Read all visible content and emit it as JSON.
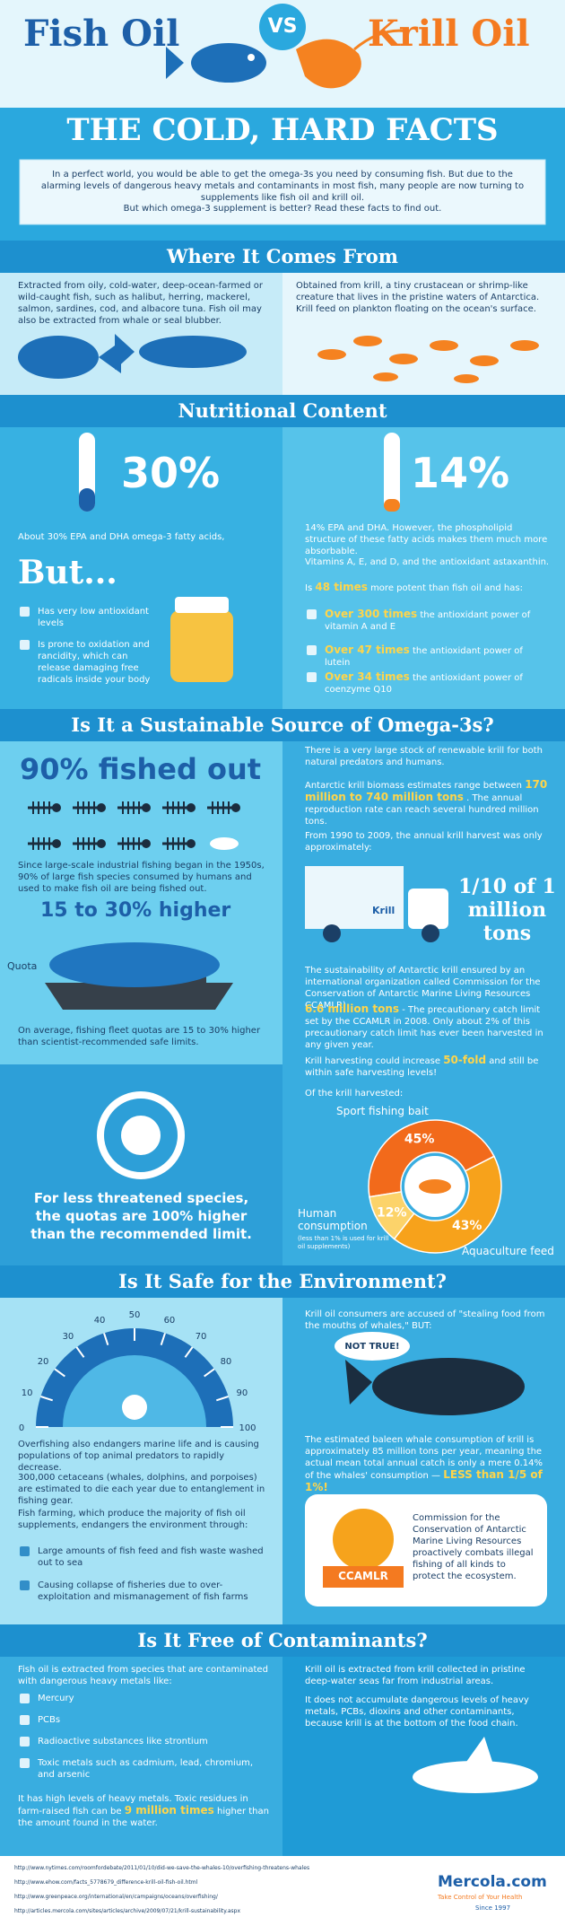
{
  "header": {
    "left_title": "Fish Oil",
    "vs": "VS",
    "right_title": "Krill Oil",
    "subtitle": "THE COLD, HARD FACTS",
    "intro": [
      "In a perfect world, you would be able to get the omega-3s you need by consuming fish. But due to the alarming levels of dangerous heavy metals and contaminants in most fish, many people are now turning to supplements like fish oil and krill oil.",
      "But which omega-3 supplement is better? Read these facts to find out."
    ]
  },
  "origin": {
    "heading": "Where It Comes From",
    "fish": "Extracted from oily, cold-water, deep-ocean-farmed or wild-caught fish, such as halibut, herring, mackerel, salmon, sardines, cod, and albacore tuna. Fish oil may also be extracted from whale or seal blubber.",
    "krill": "Obtained from krill, a tiny crustacean or shrimp-like creature that lives in the pristine waters of Antarctica. Krill feed on plankton floating on the ocean's surface."
  },
  "nutrition": {
    "heading": "Nutritional Content",
    "fish_percent": "30%",
    "fish_text": "About 30% EPA and DHA omega-3 fatty acids,",
    "but": "But...",
    "fish_cons": [
      "Has very low antioxidant levels",
      "Is prone to oxidation and rancidity, which can release damaging free radicals inside your body"
    ],
    "krill_percent": "14%",
    "krill_text": "14% EPA and DHA. However, the phospholipid structure of these fatty acids makes them much more absorbable.",
    "krill_vitamins": "Vitamins A, E, and D, and the antioxidant astaxanthin.",
    "krill_potency": {
      "before": "Is",
      "highlight": "48 times",
      "after": "more potent than fish oil and has:"
    },
    "krill_pros": [
      {
        "highlight": "Over 300 times",
        "text": "the antioxidant power of vitamin A and E"
      },
      {
        "highlight": "Over 47 times",
        "text": "the antioxidant power of lutein"
      },
      {
        "highlight": "Over 34 times",
        "text": "the antioxidant power of coenzyme Q10"
      }
    ]
  },
  "sustainability": {
    "heading": "Is It a Sustainable Source of Omega-3s?",
    "fished_out": "90% fished out",
    "fishing_text": "Since large-scale industrial fishing began in the 1950s, 90% of large fish species consumed by humans and used to make fish oil are being fished out.",
    "quota_higher": "15 to 30% higher",
    "quota_label": "Quota",
    "quota_text": "On average, fishing fleet quotas are 15 to 30% higher than scientist-recommended safe limits.",
    "threatened": "For less threatened species, the quotas are 100% higher than the recommended limit.",
    "krill_stock": "There is a very large stock of renewable krill for both natural predators and humans.",
    "biomass": {
      "before": "Antarctic krill biomass estimates range between",
      "highlight": "170 million to 740 million tons",
      "after": ". The annual reproduction rate can reach several hundred million tons."
    },
    "harvest_text": "From 1990 to 2009, the annual krill harvest was only approximately:",
    "truck_label": "Krill",
    "harvest_amount": "1/10 of 1 million tons",
    "ccamlr_text": "The sustainability of Antarctic krill ensured by an international organization called Commission for the Conservation of Antarctic Marine Living Resources CCAMLR)",
    "catch_limit": {
      "highlight": "6.6 million tons",
      "after": "- The precautionary catch limit set by the CCAMLR in 2008. Only about 2% of this precautionary catch limit has ever been harvested in any given year."
    },
    "increase": {
      "before": "Krill harvesting could increase",
      "highlight": "50-fold",
      "after": "and still be within safe harvesting levels!"
    },
    "krill_harvest": {
      "title": "Of the krill harvested:",
      "categories": [
        "Sport fishing bait",
        "Aquaculture feed",
        "Human consumption"
      ],
      "values": [
        45,
        43,
        12
      ],
      "value_labels": [
        "45%",
        "43%",
        "12%"
      ],
      "colors": [
        "#f26a1b",
        "#f7a21b",
        "#fcd36a"
      ],
      "note": "(less than 1% is used for krill oil supplements)"
    }
  },
  "environment": {
    "heading": "Is It Safe for the Environment?",
    "gauge_ticks": [
      0,
      10,
      20,
      30,
      40,
      50,
      60,
      70,
      80,
      90,
      100
    ],
    "overfishing": "Overfishing also endangers marine life and is causing populations of top animal predators to rapidly decrease.",
    "cetaceans": "300,000 cetaceans (whales, dolphins, and porpoises) are estimated to die each year due to entanglement in fishing gear.",
    "farming": "Fish farming, which produce the majority of fish oil supplements, endangers the environment through:",
    "farming_items": [
      "Large amounts of fish feed and fish waste washed out to sea",
      "Causing collapse of fisheries due to over-exploitation and mismanagement of fish farms"
    ],
    "accused": "Krill oil consumers are accused of \"stealing food from the mouths of whales,\" BUT:",
    "not_true": "NOT TRUE!",
    "whale": {
      "before": "The estimated baleen whale consumption of krill is approximately 85 million tons per year, meaning the actual mean total annual catch is only a mere 0.14% of the whales' consumption —",
      "highlight": "LESS than 1/5 of 1%!"
    },
    "ccamlr_logo": "CCAMLR",
    "ccamlr_desc": "Commission for the Conservation of Antarctic Marine Living Resources proactively combats illegal fishing of all kinds to protect the ecosystem."
  },
  "contaminants": {
    "heading": "Is It Free of Contaminants?",
    "fish_intro": "Fish oil is extracted from species that are contaminated with dangerous heavy metals like:",
    "items": [
      "Mercury",
      "PCBs",
      "Radioactive substances like strontium",
      "Toxic metals such as cadmium, lead, chromium, and arsenic"
    ],
    "heavy": {
      "before": "It has high levels of heavy metals. Toxic residues in farm-raised fish can be",
      "highlight": "9 million times",
      "after": "higher than the amount found in the water."
    },
    "krill_intro": "Krill oil is extracted from krill collected in pristine deep-water seas far from industrial areas.",
    "krill_text": "It does not accumulate dangerous levels of heavy metals, PCBs, dioxins and other contaminants, because krill is at the bottom of the food chain."
  },
  "footer": {
    "sources": [
      "http://www.nytimes.com/roomfordebate/2011/01/10/did-we-save-the-whales-10/overfishing-threatens-whales",
      "http://www.ehow.com/facts_5778679_difference-krill-oil-fish-oil.html",
      "http://www.greenpeace.org/international/en/campaigns/oceans/overfishing/",
      "http://articles.mercola.com/sites/articles/archive/2009/07/21/krill-sustainability.aspx"
    ],
    "logo": "Mercola.com",
    "tagline": "Take Control of Your Health",
    "since": "Since 1997"
  }
}
